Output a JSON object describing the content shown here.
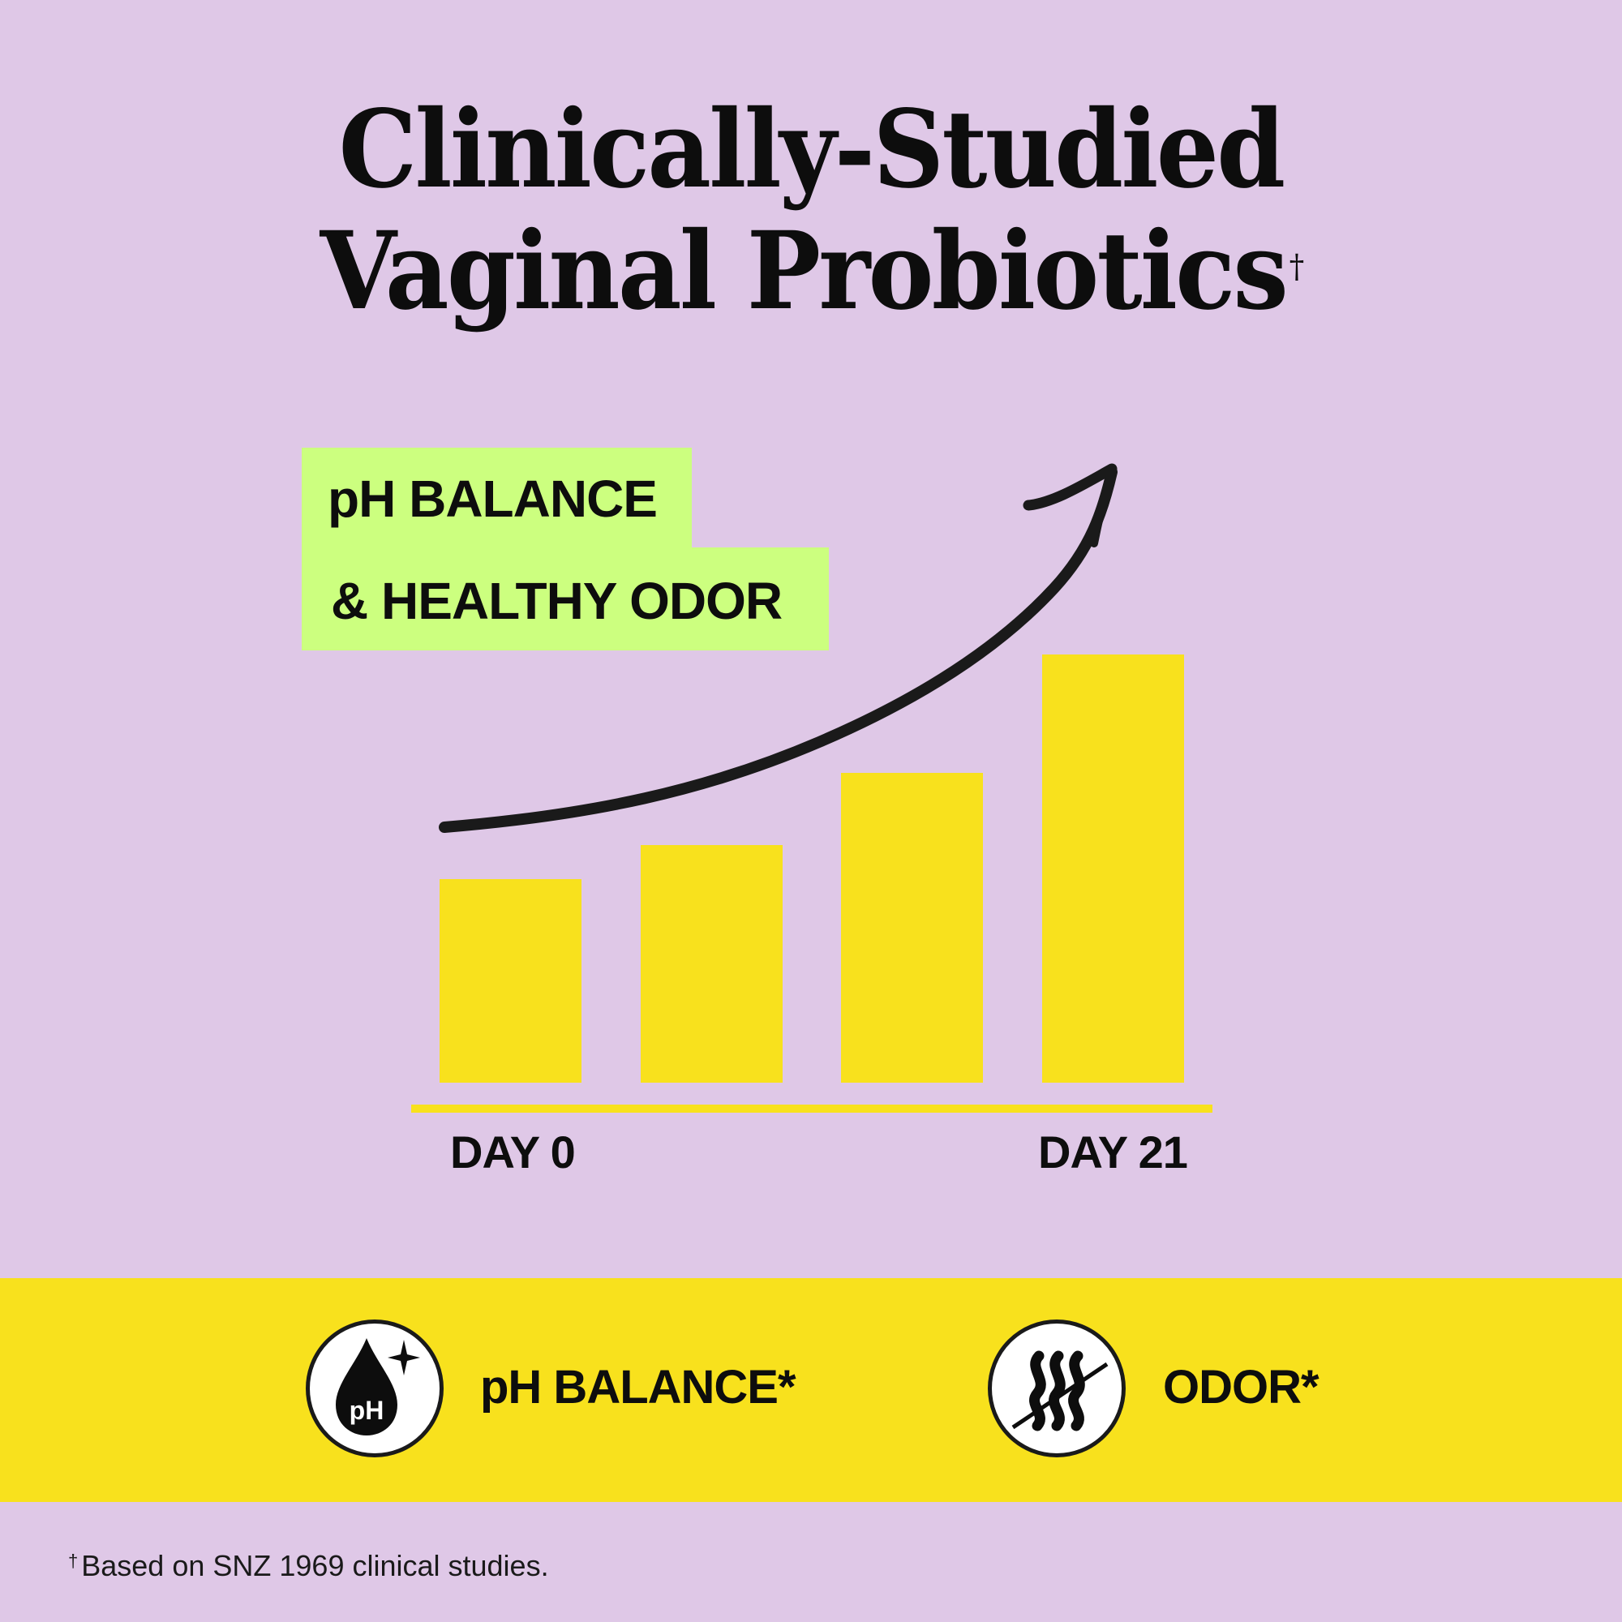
{
  "header": {
    "title_line1": "Clinically-Studied",
    "title_line2": "Vaginal Probiotics",
    "title_mark": "†"
  },
  "callout": {
    "line1": "pH BALANCE",
    "line2": "& HEALTHY ODOR"
  },
  "colors": {
    "background": "#dfc8e7",
    "bar": "#f8e11d",
    "callout": "#ccff7f",
    "arrow": "#1a1a1a",
    "text": "#0d0d0d"
  },
  "chart_data": {
    "type": "bar",
    "title": "pH BALANCE & HEALTHY ODOR",
    "categories": [
      "DAY 0",
      "",
      "",
      "DAY 21"
    ],
    "values": [
      48,
      56,
      73,
      101
    ],
    "xlabel": "",
    "ylabel": "",
    "ylim": [
      0,
      110
    ],
    "grid": false,
    "legend": null,
    "annotations": [
      "upward trend arrow from Day 0 to Day 21"
    ],
    "tick_labels": {
      "start": "DAY 0",
      "end": "DAY 21"
    }
  },
  "axis": {
    "start_label": "DAY 0",
    "end_label": "DAY 21"
  },
  "benefits": [
    {
      "icon": "ph-drop-icon",
      "label": "pH BALANCE*"
    },
    {
      "icon": "no-odor-icon",
      "label": "ODOR*"
    }
  ],
  "footnote": {
    "mark": "†",
    "text": "Based on SNZ 1969 clinical studies."
  }
}
